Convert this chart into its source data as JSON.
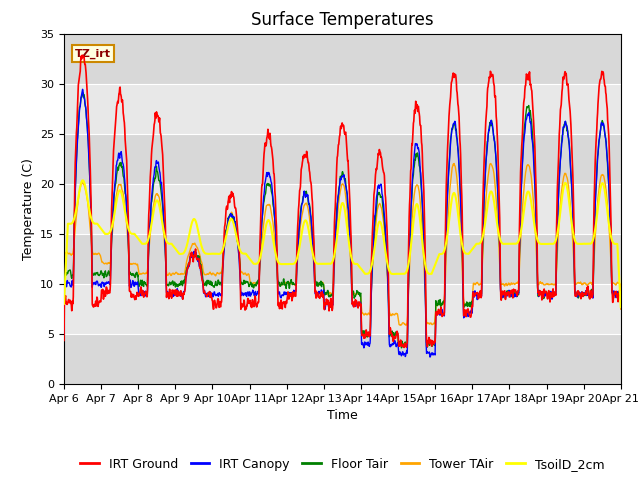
{
  "title": "Surface Temperatures",
  "xlabel": "Time",
  "ylabel": "Temperature (C)",
  "ylim": [
    0,
    35
  ],
  "yticks": [
    0,
    5,
    10,
    15,
    20,
    25,
    30,
    35
  ],
  "x_labels": [
    "Apr 6",
    "Apr 7",
    "Apr 8",
    "Apr 9",
    "Apr 10",
    "Apr 11",
    "Apr 12",
    "Apr 13",
    "Apr 14",
    "Apr 15",
    "Apr 16",
    "Apr 17",
    "Apr 18",
    "Apr 19",
    "Apr 20",
    "Apr 21"
  ],
  "series_colors": {
    "IRT Ground": "red",
    "IRT Canopy": "blue",
    "Floor Tair": "green",
    "Tower TAir": "orange",
    "TsoilD_2cm": "yellow"
  },
  "series_lw": {
    "IRT Ground": 1.2,
    "IRT Canopy": 1.0,
    "Floor Tair": 1.0,
    "Tower TAir": 1.0,
    "TsoilD_2cm": 1.5
  },
  "annotation_text": "TZ_irt",
  "bg_color": "#e8e8e8",
  "band_color_light": "#e0e0e0",
  "band_color_dark": "#d0d0d0",
  "fig_bg_color": "#ffffff",
  "title_fontsize": 12,
  "axis_fontsize": 9,
  "tick_fontsize": 8,
  "legend_fontsize": 9
}
